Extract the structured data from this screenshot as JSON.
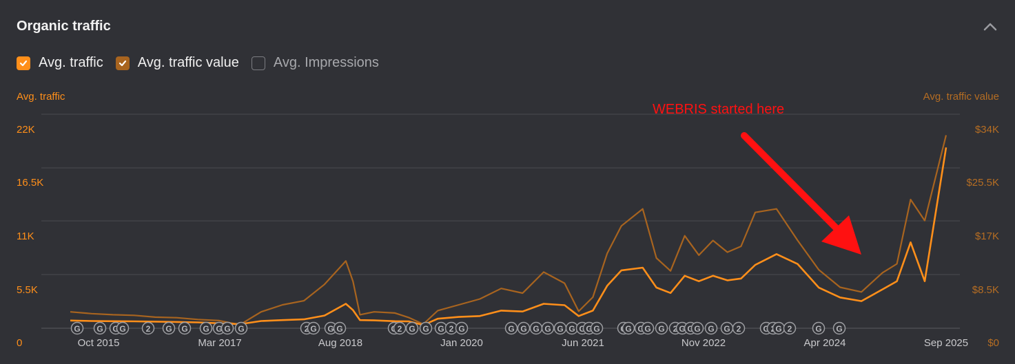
{
  "header": {
    "title": "Organic traffic",
    "collapse_icon": "chevron-up-icon"
  },
  "legend": [
    {
      "label": "Avg. traffic",
      "checked": true,
      "color": "#ff8f1a"
    },
    {
      "label": "Avg. traffic value",
      "checked": true,
      "color": "#a8641f"
    },
    {
      "label": "Avg. Impressions",
      "checked": false,
      "color": "#7c7d82"
    }
  ],
  "annotation": {
    "text": "WEBRIS started here",
    "color": "#ff1111"
  },
  "chart_data": {
    "type": "line",
    "y_left_label": "Avg. traffic",
    "y_right_label": "Avg. traffic value",
    "y_left_ticks": [
      "0",
      "5.5K",
      "11K",
      "16.5K",
      "22K"
    ],
    "y_right_ticks": [
      "$0",
      "$8.5K",
      "$17K",
      "$25.5K",
      "$34K"
    ],
    "ylim_left": [
      0,
      22000
    ],
    "ylim_right": [
      0,
      34000
    ],
    "x_ticks": [
      "Oct 2015",
      "Mar 2017",
      "Aug 2018",
      "Jan 2020",
      "Jun 2021",
      "Nov 2022",
      "Apr 2024",
      "Sep 2025"
    ],
    "x_range": [
      "2015-05",
      "2025-09"
    ],
    "grid": true,
    "series": [
      {
        "name": "Avg. traffic",
        "axis": "left",
        "color": "#ff8f1a",
        "points": [
          [
            "2015-05",
            850
          ],
          [
            "2015-08",
            800
          ],
          [
            "2015-11",
            780
          ],
          [
            "2016-02",
            760
          ],
          [
            "2016-05",
            730
          ],
          [
            "2016-08",
            690
          ],
          [
            "2016-11",
            650
          ],
          [
            "2017-02",
            550
          ],
          [
            "2017-05",
            450
          ],
          [
            "2017-08",
            800
          ],
          [
            "2017-11",
            900
          ],
          [
            "2018-02",
            980
          ],
          [
            "2018-05",
            1400
          ],
          [
            "2018-08",
            2700
          ],
          [
            "2018-09",
            2000
          ],
          [
            "2018-10",
            900
          ],
          [
            "2018-12",
            870
          ],
          [
            "2019-03",
            780
          ],
          [
            "2019-05",
            750
          ],
          [
            "2019-07",
            350
          ],
          [
            "2019-09",
            1050
          ],
          [
            "2019-12",
            1250
          ],
          [
            "2020-03",
            1350
          ],
          [
            "2020-06",
            1950
          ],
          [
            "2020-09",
            1850
          ],
          [
            "2020-12",
            2700
          ],
          [
            "2021-03",
            2550
          ],
          [
            "2021-05",
            1350
          ],
          [
            "2021-07",
            1950
          ],
          [
            "2021-09",
            4700
          ],
          [
            "2021-11",
            6400
          ],
          [
            "2022-02",
            6700
          ],
          [
            "2022-04",
            4500
          ],
          [
            "2022-06",
            3900
          ],
          [
            "2022-08",
            5800
          ],
          [
            "2022-10",
            5200
          ],
          [
            "2022-12",
            5800
          ],
          [
            "2023-02",
            5300
          ],
          [
            "2023-04",
            5500
          ],
          [
            "2023-06",
            7000
          ],
          [
            "2023-09",
            8200
          ],
          [
            "2023-12",
            7100
          ],
          [
            "2024-03",
            4500
          ],
          [
            "2024-06",
            3400
          ],
          [
            "2024-09",
            3000
          ],
          [
            "2024-12",
            4300
          ],
          [
            "2025-02",
            5200
          ],
          [
            "2025-04",
            9500
          ],
          [
            "2025-06",
            5200
          ],
          [
            "2025-09",
            20000
          ]
        ]
      },
      {
        "name": "Avg. traffic value",
        "axis": "right",
        "color": "#a8641f",
        "points": [
          [
            "2015-05",
            2800
          ],
          [
            "2015-08",
            2500
          ],
          [
            "2015-11",
            2300
          ],
          [
            "2016-02",
            2200
          ],
          [
            "2016-05",
            1900
          ],
          [
            "2016-08",
            1800
          ],
          [
            "2016-11",
            1500
          ],
          [
            "2017-02",
            1300
          ],
          [
            "2017-05",
            600
          ],
          [
            "2017-08",
            2800
          ],
          [
            "2017-11",
            4000
          ],
          [
            "2018-02",
            4700
          ],
          [
            "2018-05",
            7500
          ],
          [
            "2018-08",
            11500
          ],
          [
            "2018-09",
            8000
          ],
          [
            "2018-10",
            2300
          ],
          [
            "2018-12",
            2800
          ],
          [
            "2019-03",
            2600
          ],
          [
            "2019-05",
            1800
          ],
          [
            "2019-07",
            700
          ],
          [
            "2019-09",
            3000
          ],
          [
            "2019-12",
            4000
          ],
          [
            "2020-03",
            5000
          ],
          [
            "2020-06",
            6800
          ],
          [
            "2020-09",
            6000
          ],
          [
            "2020-12",
            9600
          ],
          [
            "2021-03",
            7700
          ],
          [
            "2021-05",
            2900
          ],
          [
            "2021-07",
            5300
          ],
          [
            "2021-09",
            12800
          ],
          [
            "2021-11",
            17500
          ],
          [
            "2022-02",
            20400
          ],
          [
            "2022-04",
            12000
          ],
          [
            "2022-06",
            9800
          ],
          [
            "2022-08",
            15800
          ],
          [
            "2022-10",
            12500
          ],
          [
            "2022-12",
            15000
          ],
          [
            "2023-02",
            13000
          ],
          [
            "2023-04",
            14000
          ],
          [
            "2023-06",
            19800
          ],
          [
            "2023-09",
            20400
          ],
          [
            "2023-12",
            15000
          ],
          [
            "2024-03",
            10000
          ],
          [
            "2024-06",
            7000
          ],
          [
            "2024-09",
            6200
          ],
          [
            "2024-12",
            9500
          ],
          [
            "2025-02",
            11000
          ],
          [
            "2025-04",
            22000
          ],
          [
            "2025-06",
            18400
          ],
          [
            "2025-09",
            33000
          ]
        ]
      }
    ],
    "event_markers": [
      "G",
      "G",
      "G",
      "G",
      "2",
      "G",
      "G",
      "G",
      "G",
      "G",
      "G",
      "2",
      "G",
      "G",
      "G",
      "G",
      "2",
      "G",
      "G",
      "G",
      "2",
      "G",
      "G",
      "G",
      "G",
      "G",
      "G",
      "G",
      "G",
      "G",
      "G",
      "G",
      "G",
      "G",
      "G",
      "G",
      "2",
      "G",
      "G",
      "G",
      "G",
      "G",
      "2",
      "G",
      "2",
      "G",
      "2",
      "G",
      "G"
    ]
  }
}
